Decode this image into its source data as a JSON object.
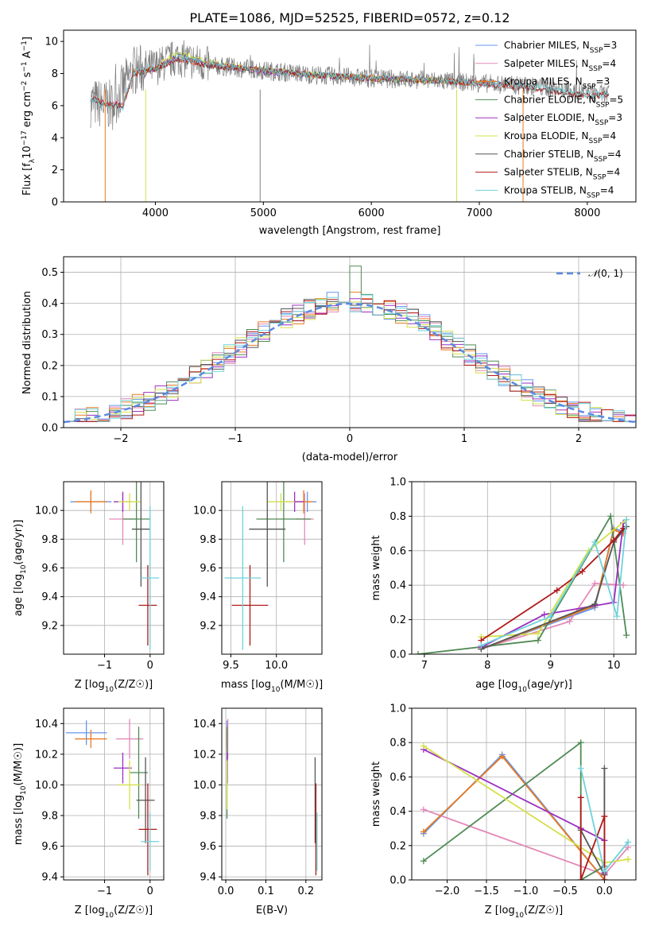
{
  "title": "PLATE=1086, MJD=52525, FIBERID=0572, z=0.12",
  "chart_data": [
    {
      "type": "line",
      "panel": "spectrum",
      "xlabel": "wavelength [Angstrom, rest frame]",
      "ylabel_main": "Flux [f",
      "ylabel_tail": "10",
      "ylabel_exp": "−17",
      "ylabel_unit": " erg cm",
      "xlim": [
        3150,
        8450
      ],
      "ylim": [
        0,
        10.7
      ],
      "xticks": [
        4000,
        5000,
        6000,
        7000,
        8000
      ],
      "yticks": [
        0,
        2,
        4,
        6,
        8,
        10
      ],
      "grid": false,
      "legend_position": "top-right",
      "series": [
        {
          "name": "Chabrier MILES, N",
          "sub": "SSP",
          "suffix": "=3",
          "color": "#6495ed",
          "x": [
            3540,
            3600,
            3700,
            3800,
            4000,
            4200,
            4500,
            5000,
            5500,
            6000,
            6500,
            7000,
            7400
          ],
          "y": [
            6.2,
            6.0,
            6.1,
            8.1,
            8.3,
            9.0,
            8.5,
            8.2,
            7.9,
            7.7,
            7.6,
            7.4,
            7.3
          ]
        },
        {
          "name": "Salpeter MILES, N",
          "sub": "SSP",
          "suffix": "=4",
          "color": "#e38ab8",
          "x": [
            3540,
            3600,
            3700,
            3800,
            4000,
            4200,
            4500,
            5000,
            5500,
            6000,
            6500,
            7000,
            7400
          ],
          "y": [
            6.3,
            6.1,
            6.2,
            8.0,
            8.4,
            8.9,
            8.5,
            8.2,
            7.9,
            7.7,
            7.6,
            7.4,
            7.2
          ]
        },
        {
          "name": "Kroupa MILES, N",
          "sub": "SSP",
          "suffix": "=3",
          "color": "#e87a20",
          "x": [
            3540,
            3600,
            3700,
            3800,
            4000,
            4200,
            4500,
            5000,
            5500,
            6000,
            6500,
            7000,
            7400
          ],
          "y": [
            6.1,
            6.0,
            6.1,
            8.1,
            8.3,
            9.0,
            8.5,
            8.2,
            7.9,
            7.7,
            7.6,
            7.4,
            7.3
          ]
        },
        {
          "name": "Chabrier ELODIE, N",
          "sub": "SSP",
          "suffix": "=5",
          "color": "#4f8a55",
          "x": [
            3900,
            4000,
            4200,
            4500,
            5000,
            5500,
            6000,
            6500,
            6800
          ],
          "y": [
            8.0,
            8.3,
            9.2,
            8.6,
            8.1,
            7.9,
            7.7,
            7.6,
            7.5
          ]
        },
        {
          "name": "Salpeter ELODIE, N",
          "sub": "SSP",
          "suffix": "=3",
          "color": "#9b30c0",
          "x": [
            3900,
            4000,
            4200,
            4500,
            5000,
            5500,
            6000,
            6500,
            6800
          ],
          "y": [
            8.0,
            8.3,
            9.1,
            8.6,
            8.1,
            7.9,
            7.7,
            7.6,
            7.5
          ]
        },
        {
          "name": "Kroupa ELODIE, N",
          "sub": "SSP",
          "suffix": "=4",
          "color": "#d4e04a",
          "x": [
            3900,
            4000,
            4200,
            4500,
            5000,
            5500,
            6000,
            6500,
            6800
          ],
          "y": [
            8.1,
            8.4,
            9.3,
            8.7,
            8.2,
            7.9,
            7.7,
            7.6,
            7.5
          ]
        },
        {
          "name": "Chabrier STELIB, N",
          "sub": "SSP",
          "suffix": "=4",
          "color": "#555555",
          "x": [
            3400,
            3500,
            3600,
            3700,
            3800,
            4000,
            4200,
            4500,
            5000,
            5500,
            6000,
            6500,
            7000,
            7500,
            8000,
            8200
          ],
          "y": [
            6.5,
            6.2,
            6.0,
            6.0,
            8.0,
            8.3,
            8.9,
            8.5,
            8.2,
            7.9,
            7.7,
            7.6,
            7.4,
            7.1,
            6.6,
            6.7
          ]
        },
        {
          "name": "Salpeter STELIB, N",
          "sub": "SSP",
          "suffix": "=4",
          "color": "#b01818",
          "x": [
            3400,
            3500,
            3600,
            3700,
            3800,
            4000,
            4200,
            4500,
            5000,
            5500,
            6000,
            6500,
            7000,
            7500,
            8000,
            8200
          ],
          "y": [
            6.5,
            6.2,
            6.1,
            6.0,
            8.0,
            8.3,
            8.9,
            8.5,
            8.2,
            7.9,
            7.7,
            7.6,
            7.4,
            7.1,
            6.6,
            6.7
          ]
        },
        {
          "name": "Kroupa STELIB, N",
          "sub": "SSP",
          "suffix": "=4",
          "color": "#6ed3dc",
          "x": [
            3400,
            3500,
            3600,
            3700,
            3800,
            4000,
            4200,
            4500,
            5000,
            5500,
            6000,
            6500,
            7000,
            7500,
            8000,
            8200
          ],
          "y": [
            6.4,
            6.1,
            6.0,
            5.9,
            8.1,
            8.4,
            9.0,
            8.6,
            8.2,
            7.9,
            7.7,
            7.6,
            7.4,
            7.2,
            6.7,
            6.7
          ]
        }
      ],
      "observed": {
        "color": "#7f7f7f",
        "x": [
          3400,
          3600,
          3800,
          4000,
          4200,
          4500,
          5000,
          5500,
          6000,
          6500,
          7000,
          7500,
          8000,
          8200
        ],
        "y": [
          6.2,
          6.0,
          8.2,
          8.4,
          9.0,
          8.5,
          8.2,
          7.9,
          7.7,
          7.6,
          7.4,
          7.2,
          6.8,
          6.7
        ]
      }
    },
    {
      "type": "line",
      "panel": "residuals",
      "xlabel": "(data-model)/error",
      "ylabel": "Normed distribution",
      "xlim": [
        -2.5,
        2.5
      ],
      "ylim": [
        0,
        0.55
      ],
      "xticks": [
        -2,
        -1,
        0,
        1,
        2
      ],
      "yticks": [
        0.0,
        0.1,
        0.2,
        0.3,
        0.4,
        0.5
      ],
      "grid": true,
      "legend_position": "top-right",
      "gaussian_label": "(0, 1)",
      "gaussian_color": "#5b8ae0"
    },
    {
      "type": "scatter",
      "panel": "Z-age",
      "xlabel": "Z [log10(Z/Z⊙)]",
      "ylabel": "age [log10(age/yr)]",
      "xlim": [
        -1.9,
        0.3
      ],
      "ylim": [
        9.0,
        10.2
      ],
      "xticks": [
        -1,
        0
      ],
      "yticks": [
        9.2,
        9.4,
        9.6,
        9.8,
        10.0
      ],
      "grid": true,
      "points": [
        {
          "color": "#6495ed",
          "x": -1.3,
          "y": 10.06,
          "xerr": 0.45,
          "yerr": 0.07
        },
        {
          "color": "#e38ab8",
          "x": -0.6,
          "y": 9.94,
          "xerr": 0.3,
          "yerr": 0.18
        },
        {
          "color": "#e87a20",
          "x": -1.3,
          "y": 10.06,
          "xerr": 0.35,
          "yerr": 0.08
        },
        {
          "color": "#4f8a55",
          "x": -0.3,
          "y": 9.94,
          "xerr": 0.3,
          "yerr": 0.3
        },
        {
          "color": "#9b30c0",
          "x": -0.6,
          "y": 10.06,
          "xerr": 0.2,
          "yerr": 0.07
        },
        {
          "color": "#d4e04a",
          "x": -0.45,
          "y": 10.06,
          "xerr": 0.25,
          "yerr": 0.06
        },
        {
          "color": "#555555",
          "x": -0.2,
          "y": 9.87,
          "xerr": 0.2,
          "yerr": 0.4
        },
        {
          "color": "#b01818",
          "x": -0.05,
          "y": 9.34,
          "xerr": 0.2,
          "yerr": 0.28
        },
        {
          "color": "#6ed3dc",
          "x": 0.0,
          "y": 9.53,
          "xerr": 0.2,
          "yerr": 0.5
        }
      ]
    },
    {
      "type": "scatter",
      "panel": "mass-age",
      "xlabel": "mass [log10(M/M⊙)]",
      "ylabel": "",
      "xlim": [
        9.4,
        10.5
      ],
      "ylim": [
        9.0,
        10.2
      ],
      "xticks": [
        9.5,
        10.0
      ],
      "yticks": [
        9.2,
        9.4,
        9.6,
        9.8,
        10.0
      ],
      "grid": true,
      "points": [
        {
          "color": "#6495ed",
          "x": 10.34,
          "y": 10.06,
          "xerr": 0.1,
          "yerr": 0.07
        },
        {
          "color": "#e38ab8",
          "x": 10.31,
          "y": 9.94,
          "xerr": 0.1,
          "yerr": 0.18
        },
        {
          "color": "#e87a20",
          "x": 10.3,
          "y": 10.06,
          "xerr": 0.1,
          "yerr": 0.08
        },
        {
          "color": "#4f8a55",
          "x": 10.08,
          "y": 9.94,
          "xerr": 0.3,
          "yerr": 0.3
        },
        {
          "color": "#9b30c0",
          "x": 10.2,
          "y": 10.06,
          "xerr": 0.1,
          "yerr": 0.07
        },
        {
          "color": "#d4e04a",
          "x": 10.05,
          "y": 10.06,
          "xerr": 0.15,
          "yerr": 0.06
        },
        {
          "color": "#555555",
          "x": 9.9,
          "y": 9.87,
          "xerr": 0.2,
          "yerr": 0.4
        },
        {
          "color": "#b01818",
          "x": 9.71,
          "y": 9.34,
          "xerr": 0.2,
          "yerr": 0.28
        },
        {
          "color": "#6ed3dc",
          "x": 9.63,
          "y": 9.53,
          "xerr": 0.2,
          "yerr": 0.5
        }
      ]
    },
    {
      "type": "line",
      "panel": "age-weight",
      "xlabel": "age [log10(age/yr)]",
      "ylabel": "mass weight",
      "xlim": [
        6.8,
        10.35
      ],
      "ylim": [
        0,
        1.0
      ],
      "xticks": [
        7,
        8,
        9,
        10
      ],
      "yticks": [
        0.0,
        0.2,
        0.4,
        0.6,
        0.8,
        1.0
      ],
      "grid": true,
      "series": [
        {
          "color": "#6495ed",
          "x": [
            7.9,
            9.7,
            10.0,
            10.15
          ],
          "y": [
            0.03,
            0.27,
            0.73,
            0.71
          ]
        },
        {
          "color": "#e38ab8",
          "x": [
            7.9,
            9.3,
            9.7,
            10.15
          ],
          "y": [
            0.03,
            0.19,
            0.41,
            0.4
          ]
        },
        {
          "color": "#e87a20",
          "x": [
            7.9,
            9.7,
            10.0,
            10.15
          ],
          "y": [
            0.03,
            0.28,
            0.72,
            0.7
          ]
        },
        {
          "color": "#4f8a55",
          "x": [
            6.9,
            8.8,
            9.95,
            10.2
          ],
          "y": [
            0.0,
            0.08,
            0.8,
            0.11
          ]
        },
        {
          "color": "#9b30c0",
          "x": [
            7.9,
            8.9,
            10.0,
            10.15
          ],
          "y": [
            0.04,
            0.23,
            0.3,
            0.76
          ]
        },
        {
          "color": "#d4e04a",
          "x": [
            7.9,
            8.8,
            9.6,
            10.2
          ],
          "y": [
            0.1,
            0.12,
            0.6,
            0.78
          ]
        },
        {
          "color": "#555555",
          "x": [
            7.9,
            9.7,
            10.0,
            10.2
          ],
          "y": [
            0.03,
            0.29,
            0.65,
            0.74
          ]
        },
        {
          "color": "#b01818",
          "x": [
            7.9,
            9.1,
            9.5,
            10.0,
            10.15
          ],
          "y": [
            0.08,
            0.37,
            0.48,
            0.66,
            0.73
          ]
        },
        {
          "color": "#6ed3dc",
          "x": [
            7.9,
            9.0,
            9.7,
            10.05,
            10.2
          ],
          "y": [
            0.05,
            0.22,
            0.65,
            0.22,
            0.78
          ]
        }
      ]
    },
    {
      "type": "scatter",
      "panel": "Z-mass",
      "xlabel": "Z [log10(Z/Z⊙)]",
      "ylabel": "mass [log10(M/M⊙)]",
      "xlim": [
        -1.9,
        0.3
      ],
      "ylim": [
        9.38,
        10.5
      ],
      "xticks": [
        -1,
        0
      ],
      "yticks": [
        9.4,
        9.6,
        9.8,
        10.0,
        10.2,
        10.4
      ],
      "grid": true,
      "points": [
        {
          "color": "#6495ed",
          "x": -1.4,
          "y": 10.34,
          "xerr": 0.45,
          "yerr": 0.08
        },
        {
          "color": "#e38ab8",
          "x": -0.45,
          "y": 10.3,
          "xerr": 0.3,
          "yerr": 0.13
        },
        {
          "color": "#e87a20",
          "x": -1.3,
          "y": 10.3,
          "xerr": 0.35,
          "yerr": 0.06
        },
        {
          "color": "#4f8a55",
          "x": -0.25,
          "y": 10.08,
          "xerr": 0.2,
          "yerr": 0.3
        },
        {
          "color": "#9b30c0",
          "x": -0.6,
          "y": 10.11,
          "xerr": 0.2,
          "yerr": 0.1
        },
        {
          "color": "#d4e04a",
          "x": -0.45,
          "y": 10.0,
          "xerr": 0.25,
          "yerr": 0.16
        },
        {
          "color": "#555555",
          "x": -0.1,
          "y": 9.9,
          "xerr": 0.2,
          "yerr": 0.28
        },
        {
          "color": "#b01818",
          "x": -0.05,
          "y": 9.71,
          "xerr": 0.2,
          "yerr": 0.3
        },
        {
          "color": "#6ed3dc",
          "x": 0.0,
          "y": 9.63,
          "xerr": 0.2,
          "yerr": 0.19
        }
      ]
    },
    {
      "type": "scatter",
      "panel": "EBV-mass",
      "xlabel": "E(B-V)",
      "ylabel": "",
      "xlim": [
        -0.01,
        0.24
      ],
      "ylim": [
        9.38,
        10.5
      ],
      "xticks": [
        0.0,
        0.1,
        0.2
      ],
      "yticks": [
        9.4,
        9.6,
        9.8,
        10.0,
        10.2,
        10.4
      ],
      "grid": true,
      "points": [
        {
          "color": "#6495ed",
          "x": 0.003,
          "y": 10.34,
          "xerr": 0,
          "yerr": 0.08
        },
        {
          "color": "#e38ab8",
          "x": 0.005,
          "y": 10.3,
          "xerr": 0,
          "yerr": 0.13
        },
        {
          "color": "#e87a20",
          "x": 0.003,
          "y": 10.3,
          "xerr": 0,
          "yerr": 0.06
        },
        {
          "color": "#4f8a55",
          "x": 0.003,
          "y": 10.08,
          "xerr": 0,
          "yerr": 0.3
        },
        {
          "color": "#9b30c0",
          "x": 0.004,
          "y": 10.11,
          "xerr": 0,
          "yerr": 0.1
        },
        {
          "color": "#d4e04a",
          "x": 0.003,
          "y": 10.0,
          "xerr": 0,
          "yerr": 0.16
        },
        {
          "color": "#555555",
          "x": 0.223,
          "y": 9.9,
          "xerr": 0,
          "yerr": 0.28
        },
        {
          "color": "#b01818",
          "x": 0.225,
          "y": 9.71,
          "xerr": 0,
          "yerr": 0.3
        },
        {
          "color": "#6ed3dc",
          "x": 0.228,
          "y": 9.63,
          "xerr": 0,
          "yerr": 0.19
        }
      ]
    },
    {
      "type": "line",
      "panel": "Z-weight",
      "xlabel": "Z [log10(Z/Z⊙)]",
      "ylabel": "mass weight",
      "xlim": [
        -2.45,
        0.4
      ],
      "ylim": [
        0,
        1.0
      ],
      "xticks": [
        -2.0,
        -1.5,
        -1.0,
        -0.5,
        0.0
      ],
      "yticks": [
        0.0,
        0.2,
        0.4,
        0.6,
        0.8,
        1.0
      ],
      "grid": true,
      "series": [
        {
          "color": "#6495ed",
          "x": [
            -2.3,
            -1.3,
            0.0,
            0.0
          ],
          "y": [
            0.27,
            0.73,
            0.0,
            0.03
          ]
        },
        {
          "color": "#e38ab8",
          "x": [
            -2.3,
            0.0,
            0.3,
            0.0
          ],
          "y": [
            0.41,
            0.03,
            0.19,
            0.03
          ]
        },
        {
          "color": "#e87a20",
          "x": [
            -2.3,
            -1.3,
            0.0,
            0.0
          ],
          "y": [
            0.28,
            0.72,
            0.0,
            0.0
          ]
        },
        {
          "color": "#4f8a55",
          "x": [
            -2.3,
            -0.3,
            -0.3,
            0.0
          ],
          "y": [
            0.11,
            0.8,
            0.0,
            0.08
          ]
        },
        {
          "color": "#9b30c0",
          "x": [
            -2.3,
            -0.3,
            0.0,
            0.0
          ],
          "y": [
            0.76,
            0.3,
            0.23,
            0.04
          ]
        },
        {
          "color": "#d4e04a",
          "x": [
            -2.3,
            0.0,
            0.3,
            0.3
          ],
          "y": [
            0.78,
            0.1,
            0.12,
            0.12
          ]
        },
        {
          "color": "#555555",
          "x": [
            -0.3,
            0.0,
            0.0,
            0.0
          ],
          "y": [
            0.29,
            0.03,
            0.65,
            0.03
          ]
        },
        {
          "color": "#b01818",
          "x": [
            -0.3,
            -0.3,
            0.0,
            0.0
          ],
          "y": [
            0.48,
            0.0,
            0.37,
            0.0
          ]
        },
        {
          "color": "#6ed3dc",
          "x": [
            -0.3,
            0.0,
            0.3,
            0.3
          ],
          "y": [
            0.65,
            0.05,
            0.22,
            0.22
          ]
        }
      ]
    }
  ]
}
